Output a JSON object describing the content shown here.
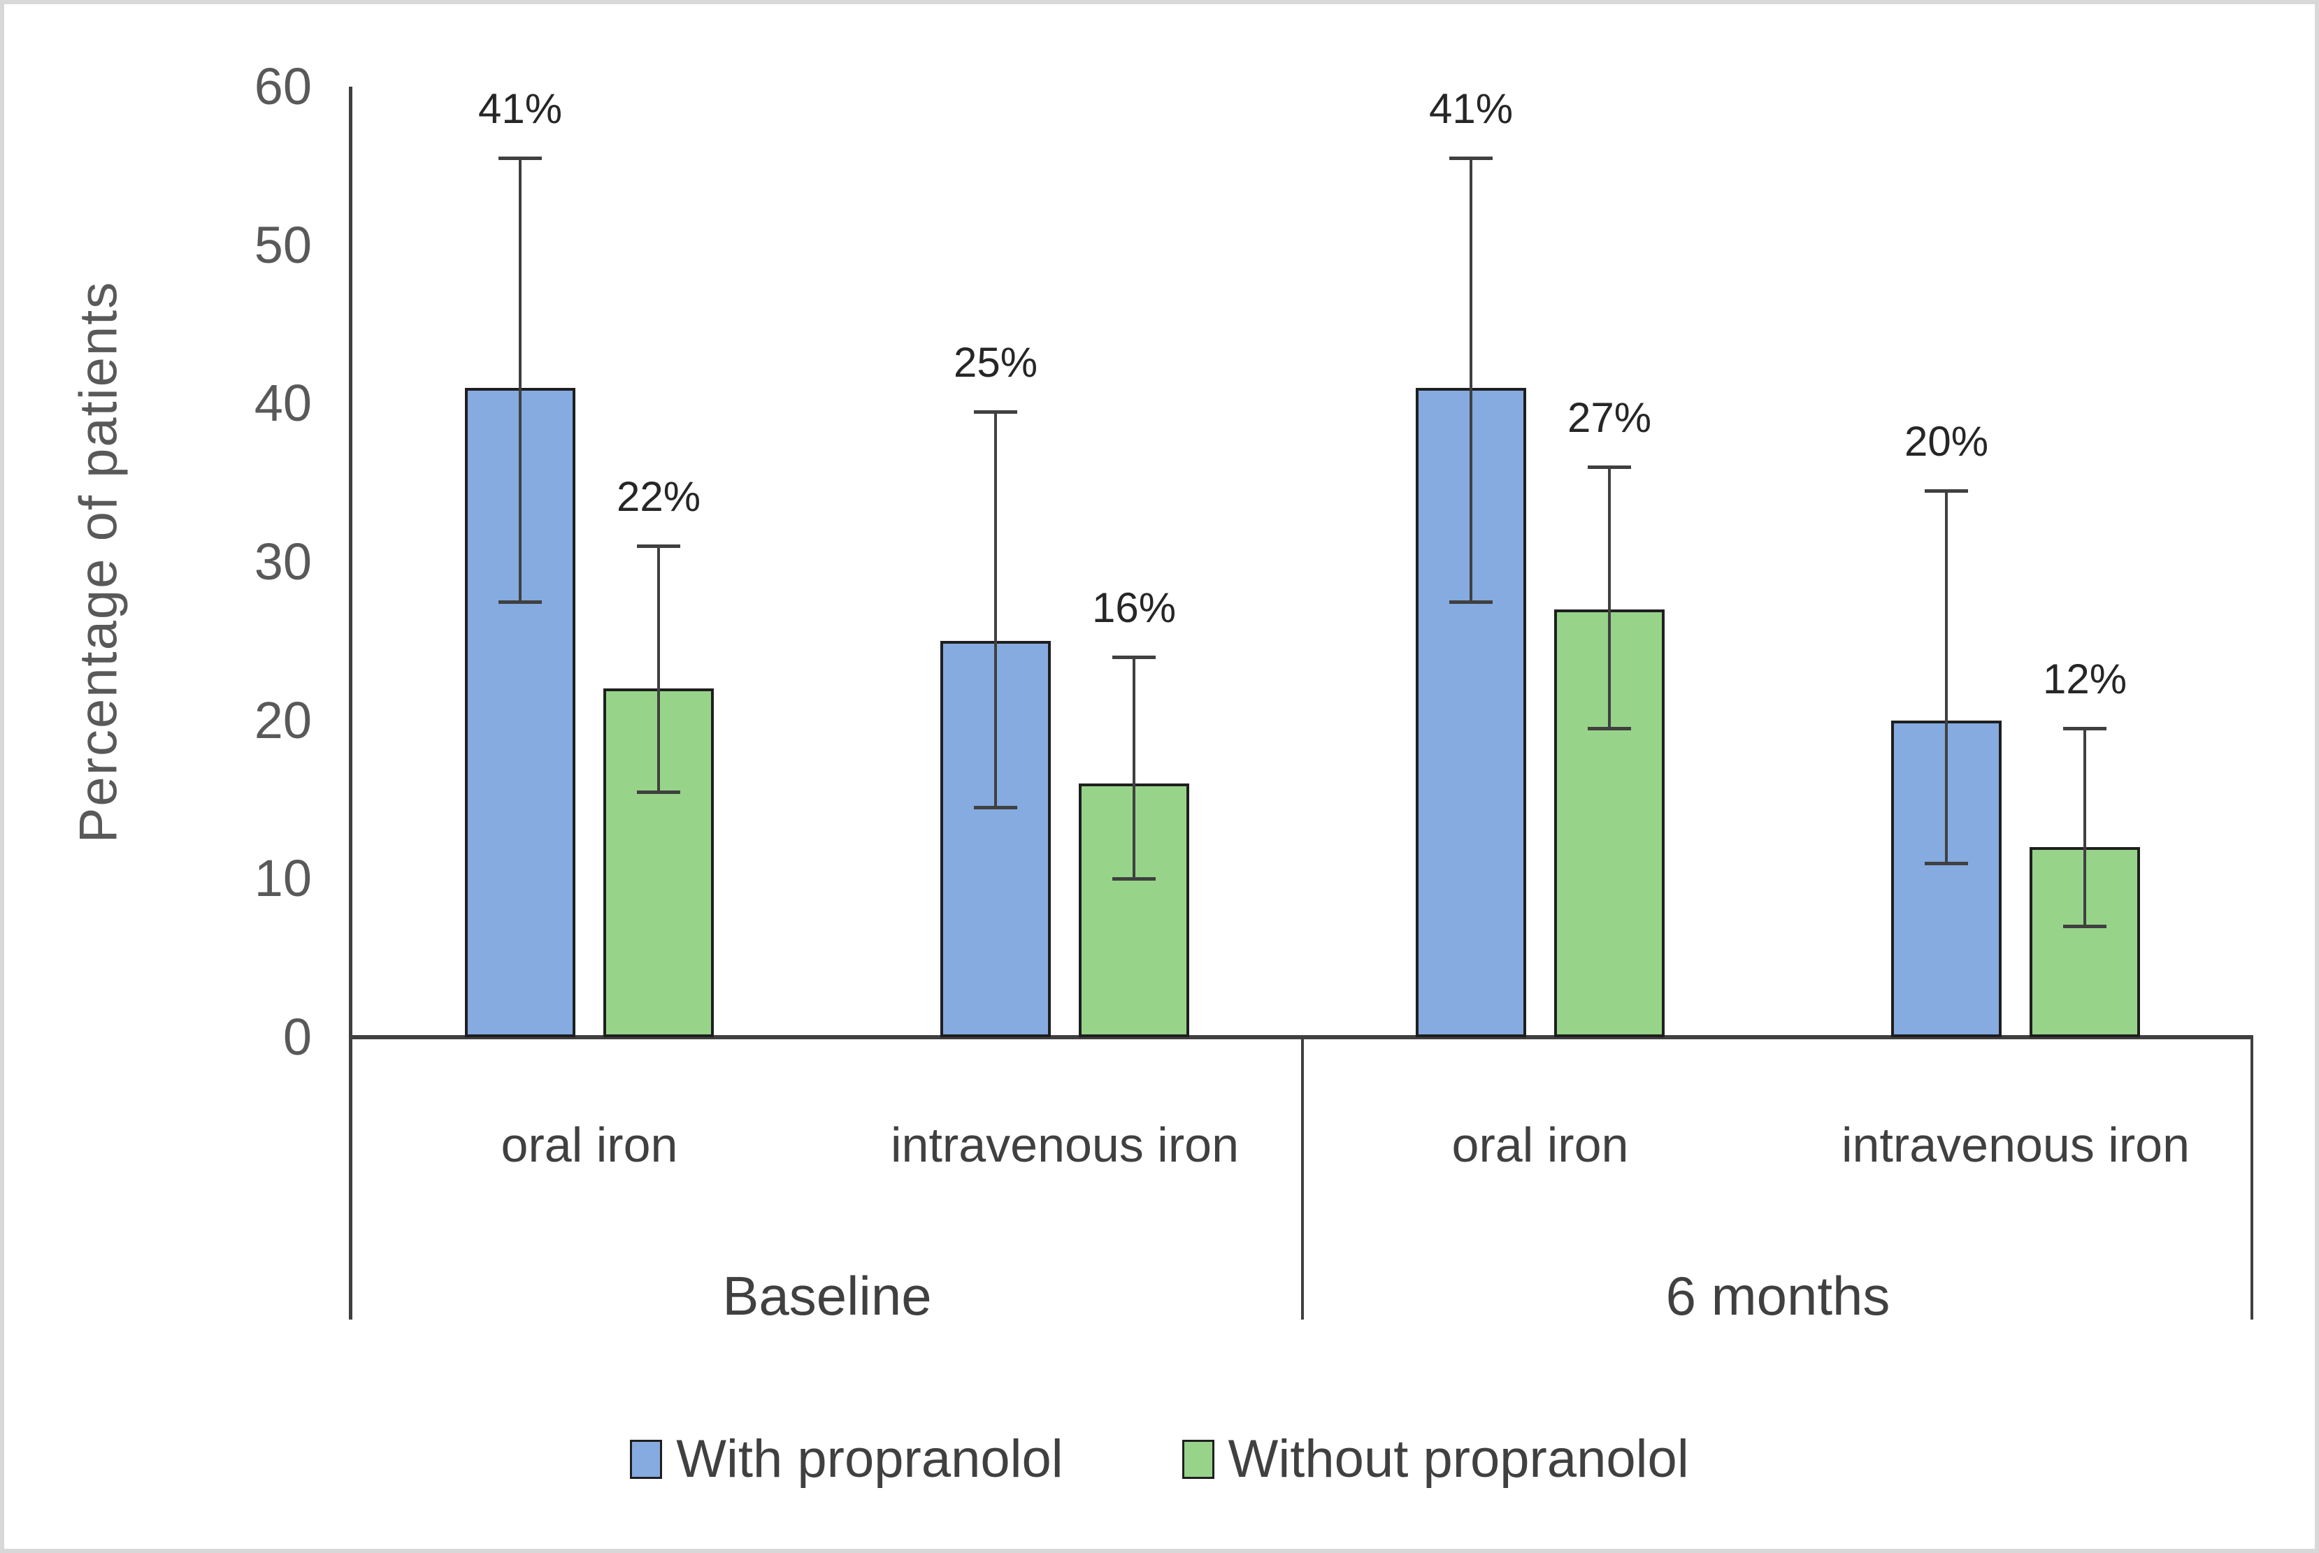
{
  "chart_data": {
    "type": "bar",
    "title": "",
    "ylabel": "Percentage of patients",
    "xlabel": "",
    "ylim": [
      0,
      60
    ],
    "yticks": [
      0,
      10,
      20,
      30,
      40,
      50,
      60
    ],
    "grid": false,
    "legend_position": "bottom",
    "series_names": [
      "With propranolol",
      "Without propranolol"
    ],
    "groups": [
      {
        "label": "Baseline",
        "subcategories": [
          {
            "label": "oral iron",
            "bars": [
              {
                "series": "With propranolol",
                "value": 41,
                "data_label": "41%",
                "err_low": 27.5,
                "err_high": 55.5
              },
              {
                "series": "Without propranolol",
                "value": 22,
                "data_label": "22%",
                "err_low": 15.5,
                "err_high": 31
              }
            ]
          },
          {
            "label": "intravenous iron",
            "bars": [
              {
                "series": "With propranolol",
                "value": 25,
                "data_label": "25%",
                "err_low": 14.5,
                "err_high": 39.5
              },
              {
                "series": "Without propranolol",
                "value": 16,
                "data_label": "16%",
                "err_low": 10,
                "err_high": 24
              }
            ]
          }
        ]
      },
      {
        "label": "6 months",
        "subcategories": [
          {
            "label": "oral iron",
            "bars": [
              {
                "series": "With propranolol",
                "value": 41,
                "data_label": "41%",
                "err_low": 27.5,
                "err_high": 55.5
              },
              {
                "series": "Without propranolol",
                "value": 27,
                "data_label": "27%",
                "err_low": 19.5,
                "err_high": 36
              }
            ]
          },
          {
            "label": "intravenous iron",
            "bars": [
              {
                "series": "With propranolol",
                "value": 20,
                "data_label": "20%",
                "err_low": 11,
                "err_high": 34.5
              },
              {
                "series": "Without propranolol",
                "value": 12,
                "data_label": "12%",
                "err_low": 7,
                "err_high": 19.5
              }
            ]
          }
        ]
      }
    ],
    "legend": [
      {
        "label": "With propranolol",
        "color": "#85ABE0"
      },
      {
        "label": "Without propranolol",
        "color": "#97D489"
      }
    ],
    "colors": {
      "with_propranolol_fill": "#85ABE0",
      "without_propranolol_fill": "#97D489",
      "bar_border": "#1f1f1f",
      "axis": "#404040",
      "error_bar": "#404040",
      "tick_text": "#595959",
      "label_text": "#404040",
      "data_label_text": "#262626",
      "figure_border": "#d8d8d8",
      "background": "#ffffff"
    }
  }
}
